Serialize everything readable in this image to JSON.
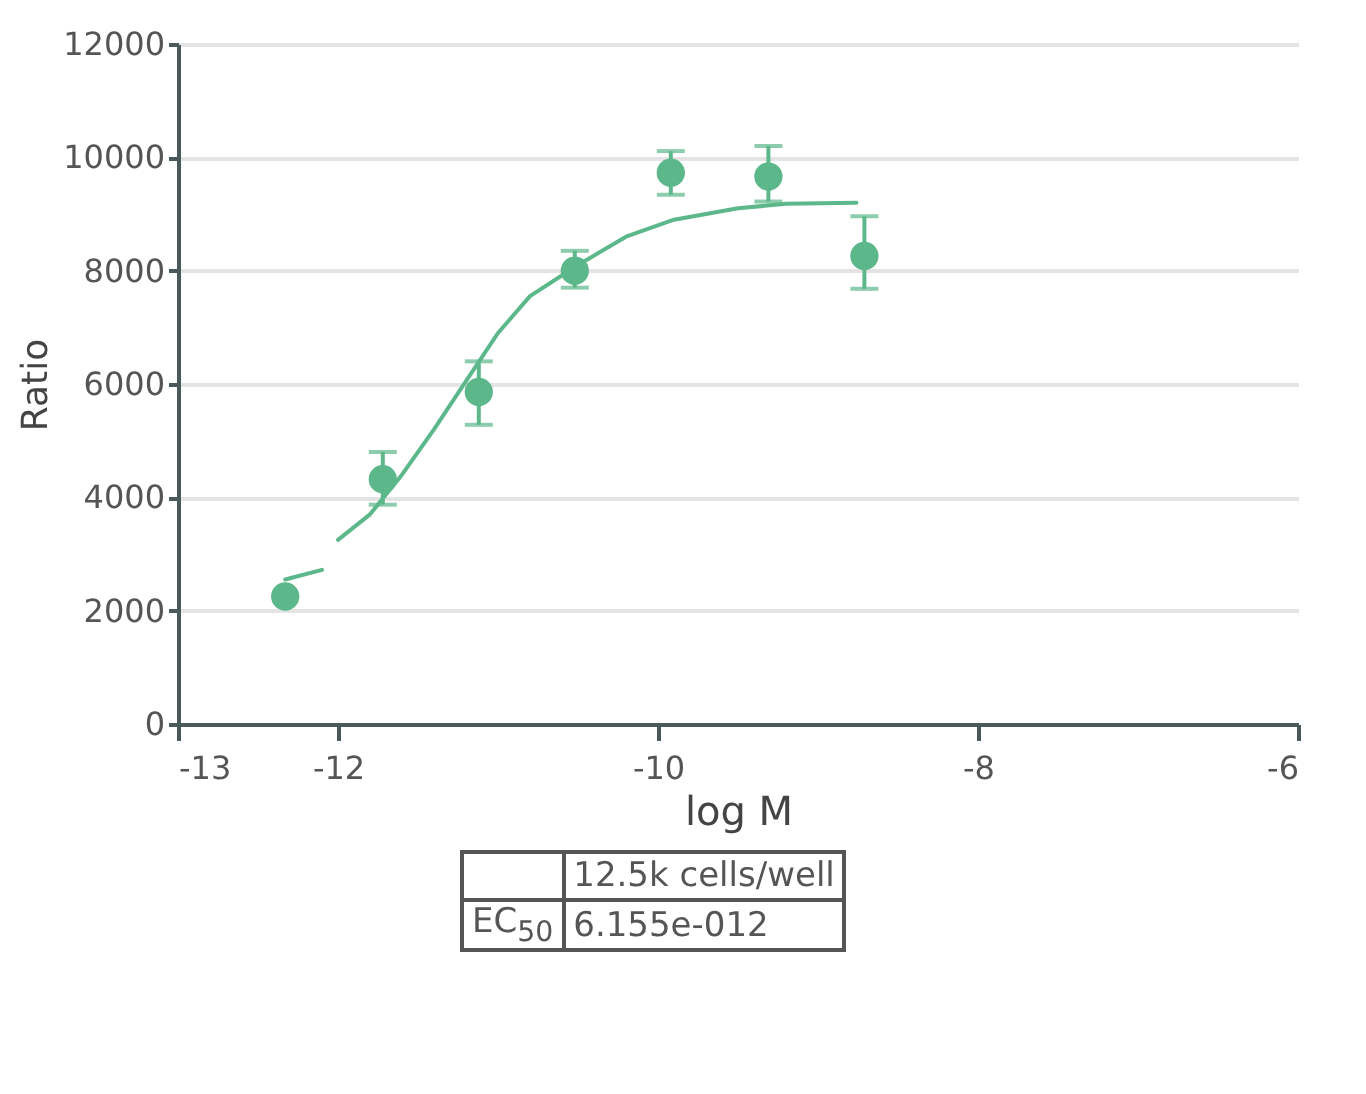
{
  "chart_data": {
    "type": "scatter",
    "xlabel": "log M",
    "ylabel": "Ratio",
    "xlim": [
      -13,
      -6
    ],
    "xticks": [
      -13,
      -12,
      -10,
      -8,
      -6
    ],
    "ylim": [
      0,
      12000
    ],
    "yticks": [
      0,
      2000,
      4000,
      6000,
      8000,
      10000,
      12000
    ],
    "grid": "y",
    "annotations": [
      "12.5k cells/well",
      "EC$_{50}$",
      "6.155e-012"
    ],
    "series": [
      {
        "type": "line",
        "color": "#5cb88a",
        "x": [
          -12.33,
          -12.1,
          -12.05,
          -12,
          -11.8,
          -11.6,
          -11.4,
          -11.2,
          -11.0,
          -10.8,
          -10.5,
          -10.2,
          -9.9,
          -9.5,
          -9.2,
          -8.76
        ],
        "values": [
          2550,
          2720,
          null,
          3250,
          3700,
          4400,
          5200,
          6050,
          6900,
          7550,
          8100,
          8600,
          8900,
          9100,
          9180,
          9200
        ]
      },
      {
        "color": "#5cb88a",
        "marker": "circle",
        "x": [
          -12.33,
          -11.72,
          -11.12,
          -10.52,
          -9.92,
          -9.31,
          -8.71
        ],
        "values": [
          2250,
          4320,
          5860,
          8000,
          9730,
          9660,
          8260
        ],
        "errors": [
          null,
          [
            3870,
            4800
          ],
          [
            5280,
            6400
          ],
          [
            7700,
            8350
          ],
          [
            9340,
            10110
          ],
          [
            9220,
            10200
          ],
          [
            7680,
            8960
          ]
        ]
      }
    ]
  }
}
